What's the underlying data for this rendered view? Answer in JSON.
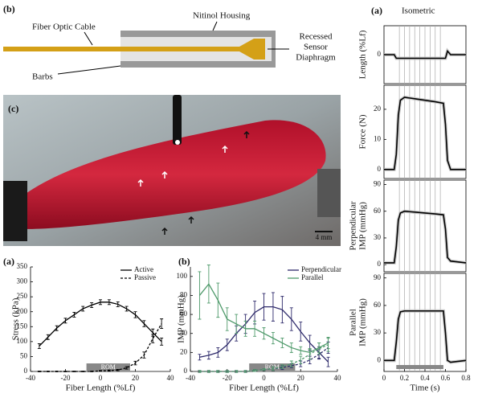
{
  "diagram": {
    "label": "(b)",
    "cable": "Fiber Optic Cable",
    "housing": "Nitinol Housing",
    "sensor": [
      "Recessed",
      "Sensor",
      "Diaphragm"
    ],
    "barbs": "Barbs"
  },
  "photo": {
    "label": "(c)",
    "scale": "4 mm"
  },
  "isometric": {
    "label": "(a)",
    "title": "Isometric"
  },
  "chart_data": [
    {
      "type": "line",
      "panel": "(a)",
      "ylabel": [
        "Stress (kPa)"
      ],
      "xlabel": "Fiber Length (%Lf)",
      "x": [
        -35,
        -30,
        -25,
        -20,
        -15,
        -10,
        -5,
        0,
        5,
        10,
        15,
        20,
        25,
        30,
        35
      ],
      "xlim": [
        -40,
        40
      ],
      "xticks": [
        -40,
        -20,
        0,
        20,
        40
      ],
      "ylim": [
        0,
        350
      ],
      "yticks": [
        0,
        50,
        100,
        150,
        200,
        250,
        300,
        350
      ],
      "legend": "upper right",
      "rom": {
        "label": "ROM",
        "range": [
          -8,
          17
        ]
      },
      "series": [
        {
          "name": "Active",
          "color": "#000000",
          "dash": false,
          "values": [
            85,
            115,
            145,
            170,
            190,
            210,
            222,
            232,
            232,
            225,
            210,
            190,
            160,
            130,
            100
          ],
          "errors": [
            8,
            8,
            8,
            8,
            8,
            8,
            8,
            8,
            8,
            8,
            8,
            10,
            10,
            12,
            12
          ]
        },
        {
          "name": "Passive",
          "color": "#000000",
          "dash": true,
          "values": [
            0,
            0,
            0,
            0,
            0,
            0,
            0,
            2,
            3,
            5,
            12,
            28,
            55,
            110,
            160
          ],
          "errors": [
            1,
            1,
            1,
            1,
            1,
            1,
            1,
            1,
            2,
            2,
            4,
            6,
            10,
            14,
            16
          ]
        }
      ]
    },
    {
      "type": "line",
      "panel": "(b)",
      "ylabel": [
        "IMP (mmHg)"
      ],
      "xlabel": "Fiber Length (%Lf)",
      "x": [
        -35,
        -30,
        -25,
        -20,
        -15,
        -10,
        -5,
        0,
        5,
        10,
        15,
        20,
        25,
        30,
        35
      ],
      "xlim": [
        -40,
        40
      ],
      "xticks": [
        -40,
        -20,
        0,
        20,
        40
      ],
      "ylim": [
        0,
        110
      ],
      "yticks": [
        0,
        20,
        40,
        60,
        80,
        100
      ],
      "legend": "upper right",
      "rom": {
        "label": "ROM",
        "range": [
          -8,
          17
        ]
      },
      "series": [
        {
          "name": "Perpendicular",
          "color": "#2e2a6b",
          "dash": false,
          "values": [
            15,
            17,
            20,
            28,
            40,
            50,
            62,
            68,
            68,
            65,
            55,
            42,
            30,
            20,
            10
          ],
          "errors": [
            3,
            4,
            5,
            6,
            8,
            10,
            12,
            14,
            15,
            14,
            12,
            10,
            8,
            6,
            5
          ]
        },
        {
          "name": "Parallel",
          "color": "#4f9a6b",
          "dash": false,
          "values": [
            80,
            92,
            75,
            55,
            50,
            45,
            45,
            40,
            35,
            30,
            25,
            22,
            20,
            25,
            30
          ],
          "errors": [
            25,
            20,
            18,
            12,
            10,
            8,
            8,
            6,
            6,
            5,
            5,
            4,
            4,
            5,
            6
          ]
        },
        {
          "color": "#2e2a6b",
          "dash": true,
          "values": [
            0,
            0,
            0,
            0,
            0,
            0,
            1,
            2,
            3,
            4,
            6,
            8,
            12,
            18,
            25
          ],
          "errors": [
            1,
            1,
            1,
            1,
            1,
            1,
            1,
            1,
            2,
            2,
            2,
            3,
            4,
            5,
            6
          ]
        },
        {
          "color": "#4f9a6b",
          "dash": true,
          "values": [
            0,
            0,
            0,
            0,
            0,
            0,
            1,
            2,
            3,
            5,
            8,
            12,
            18,
            24,
            28
          ],
          "errors": [
            1,
            1,
            1,
            1,
            1,
            1,
            1,
            1,
            2,
            2,
            3,
            4,
            5,
            6,
            7
          ]
        }
      ]
    },
    {
      "type": "line",
      "ylabel": [
        "Length (%Lf)"
      ],
      "x": [
        0,
        0.1,
        0.12,
        0.55,
        0.6,
        0.62,
        0.65,
        0.8
      ],
      "xlim": [
        0,
        0.8
      ],
      "ylim": [
        -4,
        4
      ],
      "yticks": [
        0
      ],
      "vlines": [
        0.15,
        0.2,
        0.25,
        0.3,
        0.35,
        0.4,
        0.45,
        0.5,
        0.55
      ],
      "series": [
        {
          "color": "#000000",
          "values": [
            0,
            0,
            -0.5,
            -0.5,
            -0.5,
            0.5,
            0,
            0
          ]
        }
      ]
    },
    {
      "type": "line",
      "ylabel": [
        "Force (N)"
      ],
      "x": [
        0,
        0.1,
        0.12,
        0.14,
        0.16,
        0.2,
        0.3,
        0.4,
        0.5,
        0.58,
        0.6,
        0.62,
        0.65,
        0.8
      ],
      "xlim": [
        0,
        0.8
      ],
      "ylim": [
        -3,
        28
      ],
      "yticks": [
        0,
        10,
        20
      ],
      "vlines": [
        0.15,
        0.2,
        0.25,
        0.3,
        0.35,
        0.4,
        0.45,
        0.5,
        0.55
      ],
      "series": [
        {
          "color": "#000000",
          "values": [
            0,
            0,
            5,
            18,
            23,
            24,
            23.5,
            23,
            22.5,
            22,
            15,
            3,
            0,
            0
          ]
        }
      ]
    },
    {
      "type": "line",
      "ylabel": [
        "Perpendicular",
        "IMP (mmHg)"
      ],
      "x": [
        0,
        0.1,
        0.12,
        0.14,
        0.16,
        0.2,
        0.3,
        0.4,
        0.5,
        0.58,
        0.6,
        0.62,
        0.65,
        0.8
      ],
      "xlim": [
        0,
        0.8
      ],
      "ylim": [
        -8,
        95
      ],
      "yticks": [
        0,
        30,
        60,
        90
      ],
      "vlines": [
        0.15,
        0.2,
        0.25,
        0.3,
        0.35,
        0.4,
        0.45,
        0.5,
        0.55
      ],
      "series": [
        {
          "color": "#000000",
          "values": [
            2,
            2,
            20,
            50,
            58,
            60,
            59,
            58,
            57,
            56,
            40,
            8,
            4,
            2
          ]
        }
      ]
    },
    {
      "type": "line",
      "ylabel": [
        "Parallel",
        "IMP (mmHg)"
      ],
      "xlabel": "Time (s)",
      "x": [
        0,
        0.1,
        0.12,
        0.14,
        0.16,
        0.2,
        0.3,
        0.4,
        0.5,
        0.58,
        0.6,
        0.62,
        0.65,
        0.8
      ],
      "xlim": [
        0,
        0.8
      ],
      "xticks": [
        0,
        0.2,
        0.4,
        0.6,
        0.8
      ],
      "ylim": [
        -12,
        95
      ],
      "yticks": [
        0,
        30,
        60,
        90
      ],
      "vlines": [
        0.15,
        0.2,
        0.25,
        0.3,
        0.35,
        0.4,
        0.45,
        0.5,
        0.55
      ],
      "stim": [
        0.12,
        0.58
      ],
      "series": [
        {
          "color": "#000000",
          "values": [
            0,
            0,
            20,
            45,
            53,
            54,
            54,
            54,
            54,
            54,
            30,
            0,
            -2,
            0
          ]
        }
      ]
    }
  ]
}
